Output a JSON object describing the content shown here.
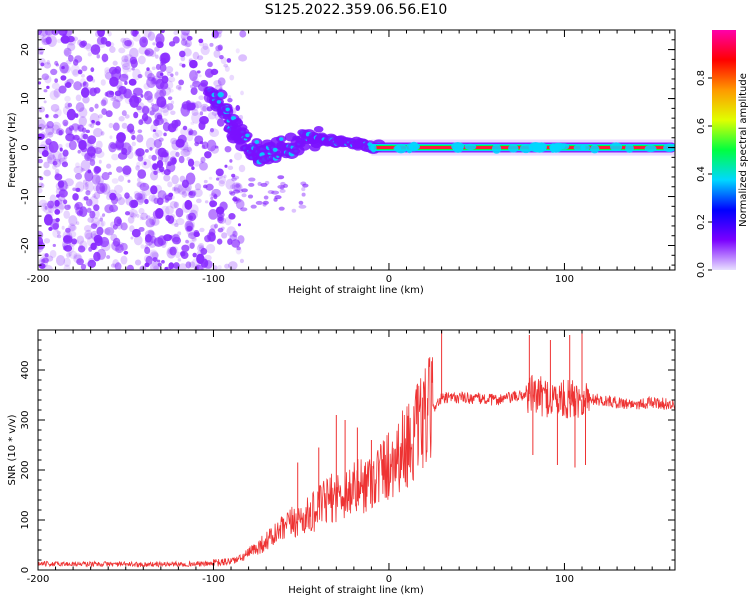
{
  "title": "S125.2022.359.06.56.E10",
  "colors": {
    "snr_line": "#ee3333",
    "track_outer": "#7a10ff",
    "track_mid": "#00d8ff",
    "track_core": "#ff1a3c",
    "noise": "#8a2cff"
  },
  "chart_data": [
    {
      "type": "heatmap",
      "title": "S125.2022.359.06.56.E10",
      "xlabel": "Height of straight line (km)",
      "ylabel": "Frequency (Hz)",
      "xlim": [
        -200,
        163
      ],
      "ylim": [
        -25,
        24
      ],
      "x_ticks": [
        -200,
        -100,
        0,
        100
      ],
      "x_tick_labels": [
        "-200",
        "-100",
        "0",
        "100"
      ],
      "y_ticks": [
        -20,
        -10,
        0,
        10,
        20
      ],
      "y_tick_labels": [
        "-20",
        "-10",
        "0",
        "10",
        "20"
      ],
      "colorbar": {
        "label": "Normalized spectral amplitude",
        "range": [
          0,
          1
        ],
        "ticks": [
          0,
          0.2,
          0.4,
          0.6,
          0.8
        ],
        "tick_labels": [
          "0.0",
          "0.2",
          "0.4",
          "0.6",
          "0.8"
        ],
        "stops": [
          "#e8e0ff",
          "#7a00ff",
          "#0000ff",
          "#00d8ff",
          "#00ff40",
          "#e0ff00",
          "#ff9900",
          "#ff0000",
          "#ff00aa"
        ]
      },
      "features": {
        "noise_region_x": [
          -200,
          -95
        ],
        "noise_frequency_range": [
          -25,
          24
        ],
        "descending_track": [
          [
            -103,
            12
          ],
          [
            -95,
            8
          ],
          [
            -88,
            4
          ],
          [
            -82,
            1
          ],
          [
            -75,
            -1
          ],
          [
            -68,
            -1
          ],
          [
            -60,
            0
          ],
          [
            -50,
            1
          ],
          [
            -42,
            2
          ],
          [
            -35,
            1.5
          ],
          [
            -25,
            1
          ],
          [
            -15,
            0.5
          ],
          [
            -5,
            0
          ]
        ],
        "steady_signal": {
          "x_start": -10,
          "x_end": 163,
          "frequency": 0
        }
      }
    },
    {
      "type": "line",
      "xlabel": "Height of straight line (km)",
      "ylabel": "SNR (10 * v/v)",
      "xlim": [
        -200,
        163
      ],
      "ylim": [
        0,
        480
      ],
      "x_ticks": [
        -200,
        -100,
        0,
        100
      ],
      "x_tick_labels": [
        "-200",
        "-100",
        "0",
        "100"
      ],
      "y_ticks": [
        0,
        100,
        200,
        300,
        400
      ],
      "y_tick_labels": [
        "0",
        "100",
        "200",
        "300",
        "400"
      ],
      "series": [
        {
          "name": "SNR",
          "x": [
            -200,
            -180,
            -160,
            -140,
            -120,
            -105,
            -95,
            -85,
            -75,
            -65,
            -55,
            -45,
            -35,
            -25,
            -15,
            -5,
            5,
            15,
            20,
            25,
            30,
            40,
            50,
            60,
            70,
            80,
            90,
            100,
            110,
            120,
            130,
            140,
            150,
            163
          ],
          "values": [
            12,
            12,
            12,
            11,
            12,
            12,
            15,
            22,
            45,
            70,
            95,
            110,
            140,
            155,
            170,
            195,
            230,
            270,
            300,
            325,
            342,
            345,
            343,
            340,
            345,
            352,
            345,
            340,
            345,
            340,
            335,
            332,
            335,
            330
          ]
        }
      ],
      "spikes": [
        {
          "x": -52,
          "value": 215
        },
        {
          "x": -40,
          "value": 245
        },
        {
          "x": -30,
          "value": 310
        },
        {
          "x": -25,
          "value": 300
        },
        {
          "x": -18,
          "value": 285
        },
        {
          "x": -10,
          "value": 260
        },
        {
          "x": 30,
          "value": 480
        },
        {
          "x": 80,
          "value": 470
        },
        {
          "x": 82,
          "value": 230
        },
        {
          "x": 92,
          "value": 460
        },
        {
          "x": 96,
          "value": 210
        },
        {
          "x": 103,
          "value": 470
        },
        {
          "x": 106,
          "value": 205
        },
        {
          "x": 110,
          "value": 480
        },
        {
          "x": 112,
          "value": 210
        }
      ]
    }
  ]
}
